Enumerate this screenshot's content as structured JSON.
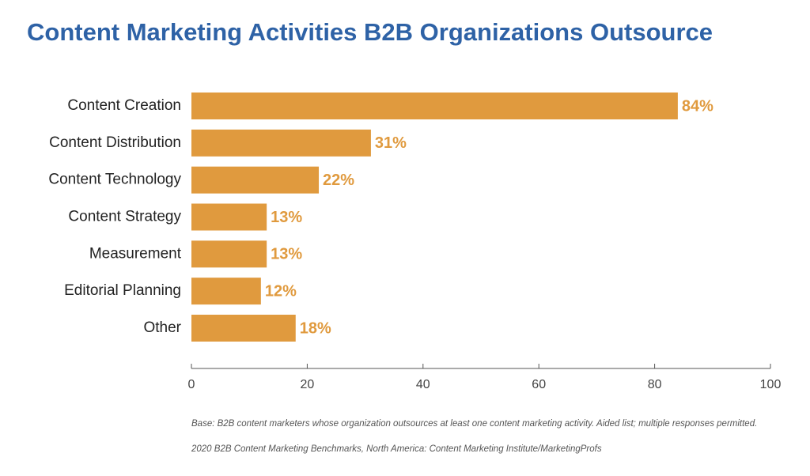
{
  "chart_data": {
    "type": "bar",
    "orientation": "horizontal",
    "title": "Content Marketing Activities B2B Organizations Outsource",
    "categories": [
      "Content Creation",
      "Content Distribution",
      "Content Technology",
      "Content Strategy",
      "Measurement",
      "Editorial Planning",
      "Other"
    ],
    "values": [
      84,
      31,
      22,
      13,
      13,
      12,
      18
    ],
    "value_labels": [
      "84%",
      "31%",
      "22%",
      "13%",
      "13%",
      "12%",
      "18%"
    ],
    "color": "#e09a3e",
    "xlim": [
      0,
      100
    ],
    "xticks": [
      0,
      20,
      40,
      60,
      80,
      100
    ],
    "footnote": "Base: B2B content marketers whose organization outsources at least one content marketing activity. Aided list; multiple responses permitted.",
    "source": "2020 B2B Content Marketing Benchmarks, North America: Content Marketing Institute/MarketingProfs"
  }
}
